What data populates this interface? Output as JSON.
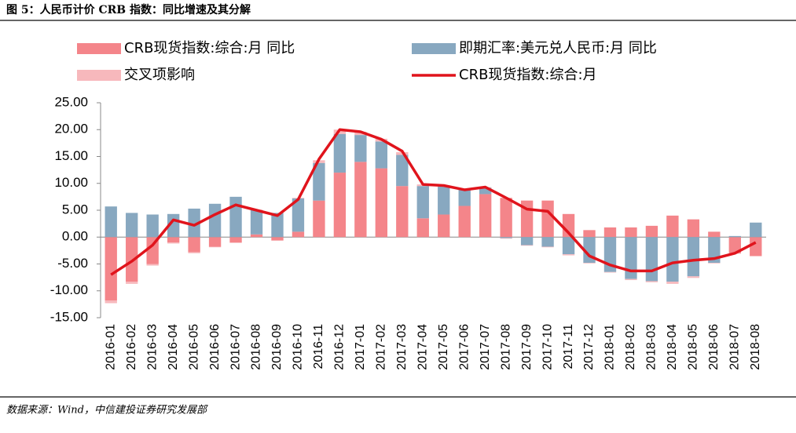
{
  "chart_data": {
    "type": "bar",
    "stacked": true,
    "title": "图 5：人民币计价 CRB 指数：同比增速及其分解",
    "source": "数据来源：Wind，中信建投证券研究发展部",
    "categories": [
      "2016-01",
      "2016-02",
      "2016-03",
      "2016-04",
      "2016-05",
      "2016-06",
      "2016-07",
      "2016-08",
      "2016-09",
      "2016-10",
      "2016-11",
      "2016-12",
      "2017-01",
      "2017-02",
      "2017-03",
      "2017-04",
      "2017-05",
      "2017-06",
      "2017-07",
      "2017-08",
      "2017-09",
      "2017-10",
      "2017-11",
      "2017-12",
      "2018-01",
      "2018-02",
      "2018-03",
      "2018-04",
      "2018-05",
      "2018-06",
      "2018-07",
      "2018-08"
    ],
    "series": [
      {
        "name": "CRB现货指数:综合:月 同比",
        "type": "bar",
        "color": "#f4858a",
        "values": [
          -11.8,
          -8.3,
          -5.0,
          -1.0,
          -2.8,
          -1.8,
          -1.0,
          0.5,
          -0.6,
          1.0,
          6.8,
          12.0,
          14.0,
          12.8,
          9.5,
          3.5,
          4.2,
          5.8,
          8.0,
          7.3,
          6.8,
          6.8,
          4.3,
          1.3,
          1.8,
          1.8,
          2.1,
          4.0,
          3.3,
          1.0,
          -3.0,
          -3.5
        ]
      },
      {
        "name": "即期汇率:美元兑人民币:月 同比",
        "type": "bar",
        "color": "#88a8c0",
        "values": [
          5.7,
          4.5,
          4.2,
          4.3,
          5.3,
          6.2,
          7.5,
          4.5,
          4.5,
          6.2,
          7.0,
          7.2,
          5.0,
          5.0,
          5.8,
          6.0,
          5.2,
          3.0,
          1.2,
          -0.2,
          -1.5,
          -1.8,
          -3.2,
          -4.8,
          -6.5,
          -7.8,
          -8.2,
          -8.3,
          -7.3,
          -4.8,
          0.2,
          2.7
        ]
      },
      {
        "name": "交叉项影响",
        "type": "bar",
        "color": "#f7b8bc",
        "values": [
          -0.5,
          -0.4,
          -0.3,
          -0.2,
          -0.2,
          -0.1,
          -0.1,
          0.1,
          -0.1,
          0.1,
          0.5,
          0.8,
          0.6,
          0.5,
          0.5,
          0.3,
          0.2,
          0.2,
          0.1,
          -0.1,
          -0.1,
          -0.1,
          -0.2,
          -0.1,
          -0.1,
          -0.2,
          -0.2,
          -0.4,
          -0.3,
          -0.1,
          -0.1,
          -0.1
        ]
      },
      {
        "name": "CRB现货指数:综合:月",
        "type": "line",
        "color": "#e0141c",
        "values": [
          -7.0,
          -4.5,
          -1.5,
          3.2,
          2.2,
          4.2,
          6.0,
          5.0,
          4.0,
          7.0,
          14.5,
          20.0,
          19.6,
          18.2,
          16.0,
          9.8,
          9.6,
          8.8,
          9.3,
          7.3,
          5.2,
          4.8,
          0.8,
          -3.5,
          -5.2,
          -6.3,
          -6.3,
          -4.8,
          -4.3,
          -4.0,
          -3.0,
          -1.0
        ]
      }
    ],
    "ylim": [
      -15,
      25
    ],
    "yticks": [
      {
        "value": -15,
        "label": "-15.00"
      },
      {
        "value": -10,
        "label": "-10.00"
      },
      {
        "value": -5,
        "label": "-5.00"
      },
      {
        "value": 0,
        "label": "0.00"
      },
      {
        "value": 5,
        "label": "5.00"
      },
      {
        "value": 10,
        "label": "10.00"
      },
      {
        "value": 15,
        "label": "15.00"
      },
      {
        "value": 20,
        "label": "20.00"
      },
      {
        "value": 25,
        "label": "25.00"
      }
    ],
    "grid": false
  }
}
